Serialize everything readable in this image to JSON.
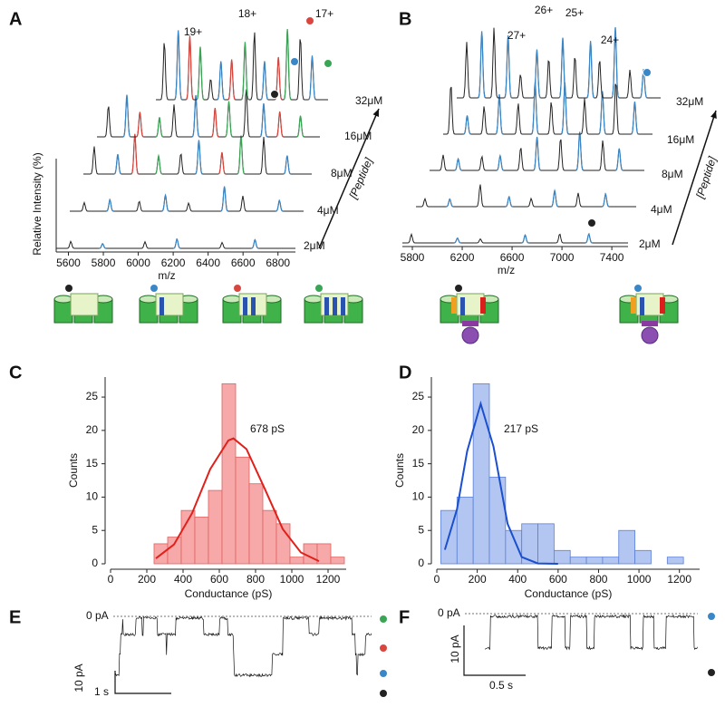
{
  "panel_letters": [
    "A",
    "B",
    "C",
    "D",
    "E",
    "F"
  ],
  "chart_data": [
    {
      "type": "spectra",
      "xlabel": "m/z",
      "ylabel": "Relative Intensity (%)",
      "arrow_label": "[Peptide]",
      "xlim": [
        5530,
        6900
      ],
      "xticks": [
        5600,
        5800,
        6000,
        6200,
        6400,
        6600,
        6800
      ],
      "traces": [
        "2μM",
        "4μM",
        "8μM",
        "16μM",
        "32μM"
      ],
      "peak_labels": [
        "19+",
        "18+",
        "17+"
      ]
    },
    {
      "type": "spectra",
      "xlabel": "m/z",
      "arrow_label": "[Peptide]",
      "xlim": [
        5720,
        7530
      ],
      "xticks": [
        5800,
        6200,
        6600,
        7000,
        7400
      ],
      "traces": [
        "2μM",
        "4μM",
        "8μM",
        "16μM",
        "32μM"
      ],
      "peak_labels": [
        "27+",
        "26+",
        "25+",
        "24+"
      ]
    },
    {
      "type": "histogram",
      "xlabel": "Conductance (pS)",
      "ylabel": "Counts",
      "color": "#f7a8a8",
      "edge": "#e06060",
      "bins": [
        240,
        315,
        390,
        465,
        540,
        615,
        690,
        765,
        840,
        915,
        990,
        1065,
        1140,
        1215,
        1290
      ],
      "values": [
        3,
        4,
        8,
        7,
        11,
        27,
        16,
        12,
        8,
        6,
        1,
        3,
        3,
        1
      ],
      "fit": {
        "color": "#e0201b",
        "x": [
          250,
          350,
          450,
          550,
          650,
          678,
          750,
          850,
          950,
          1050,
          1150
        ],
        "values": [
          0.8,
          2.9,
          7.6,
          14.2,
          18.5,
          18.8,
          17.2,
          11.3,
          5.2,
          1.7,
          0.4
        ]
      },
      "annotation": "678 pS",
      "xlim": [
        0,
        1300
      ],
      "xticks": [
        0,
        200,
        400,
        600,
        800,
        1000,
        1200
      ],
      "ylim": [
        0,
        28
      ],
      "yticks": [
        0,
        5,
        10,
        15,
        20,
        25
      ]
    },
    {
      "type": "histogram",
      "xlabel": "Conductance (pS)",
      "ylabel": "Counts",
      "color": "#b3c6f2",
      "edge": "#5a7fd6",
      "bins": [
        20,
        100,
        180,
        260,
        340,
        420,
        500,
        580,
        660,
        740,
        820,
        900,
        980,
        1060,
        1140,
        1220
      ],
      "values": [
        8,
        10,
        27,
        13,
        5,
        6,
        6,
        2,
        1,
        1,
        1,
        5,
        2,
        0,
        1
      ],
      "fit": {
        "color": "#1a4fd0",
        "x": [
          40,
          100,
          150,
          217,
          280,
          350,
          420,
          500,
          600
        ],
        "values": [
          2.1,
          8.2,
          16.9,
          24,
          17.6,
          6.0,
          1.0,
          0.05,
          0
        ]
      },
      "annotation": "217 pS",
      "xlim": [
        0,
        1300
      ],
      "xticks": [
        0,
        200,
        400,
        600,
        800,
        1000,
        1200
      ],
      "ylim": [
        0,
        28
      ],
      "yticks": [
        0,
        5,
        10,
        15,
        20,
        25
      ]
    },
    {
      "type": "trace",
      "zero_label": "0 pA",
      "y_scale_label": "10 pA",
      "x_scale_label": "1 s"
    },
    {
      "type": "trace",
      "zero_label": "0 pA",
      "y_scale_label": "10 pA",
      "x_scale_label": "0.5 s"
    }
  ]
}
